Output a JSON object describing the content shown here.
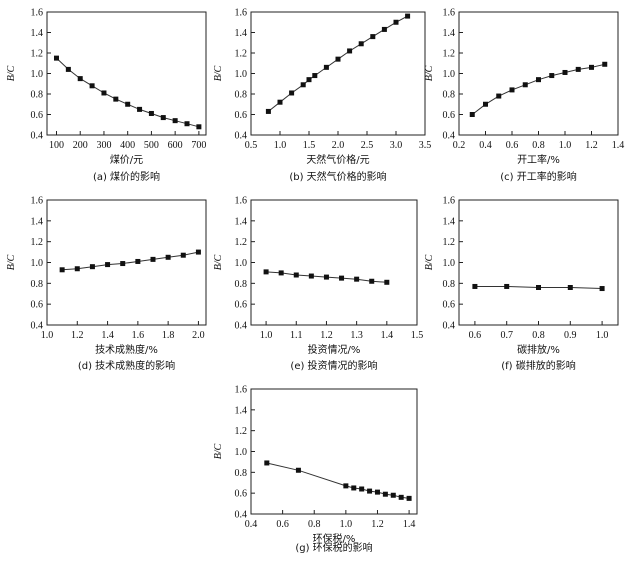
{
  "chart_data": [
    {
      "type": "line",
      "xlabel": "煤价/元",
      "ylabel": "B/C",
      "caption": "(a) 煤价的影响",
      "xlim": [
        60,
        730
      ],
      "ylim": [
        0.4,
        1.6
      ],
      "xticks": [
        100,
        200,
        300,
        400,
        500,
        600,
        700
      ],
      "yticks": [
        0.4,
        0.6,
        0.8,
        1.0,
        1.2,
        1.4,
        1.6
      ],
      "x": [
        100,
        150,
        200,
        250,
        300,
        350,
        400,
        450,
        500,
        550,
        600,
        650,
        700
      ],
      "y": [
        1.15,
        1.04,
        0.95,
        0.88,
        0.81,
        0.75,
        0.7,
        0.65,
        0.61,
        0.57,
        0.54,
        0.51,
        0.48
      ]
    },
    {
      "type": "line",
      "xlabel": "天然气价格/元",
      "ylabel": "B/C",
      "caption": "(b) 天然气价格的影响",
      "xlim": [
        0.5,
        3.5
      ],
      "ylim": [
        0.4,
        1.6
      ],
      "xticks": [
        0.5,
        1.0,
        1.5,
        2.0,
        2.5,
        3.0,
        3.5
      ],
      "yticks": [
        0.4,
        0.6,
        0.8,
        1.0,
        1.2,
        1.4,
        1.6
      ],
      "x": [
        0.8,
        1.0,
        1.2,
        1.4,
        1.5,
        1.6,
        1.8,
        2.0,
        2.2,
        2.4,
        2.6,
        2.8,
        3.0,
        3.2
      ],
      "y": [
        0.63,
        0.72,
        0.81,
        0.89,
        0.94,
        0.98,
        1.06,
        1.14,
        1.22,
        1.29,
        1.36,
        1.43,
        1.5,
        1.56
      ]
    },
    {
      "type": "line",
      "xlabel": "开工率/%",
      "ylabel": "B/C",
      "caption": "(c) 开工率的影响",
      "xlim": [
        0.2,
        1.4
      ],
      "ylim": [
        0.4,
        1.6
      ],
      "xticks": [
        0.2,
        0.4,
        0.6,
        0.8,
        1.0,
        1.2,
        1.4
      ],
      "yticks": [
        0.4,
        0.6,
        0.8,
        1.0,
        1.2,
        1.4,
        1.6
      ],
      "x": [
        0.3,
        0.4,
        0.5,
        0.6,
        0.7,
        0.8,
        0.9,
        1.0,
        1.1,
        1.2,
        1.3
      ],
      "y": [
        0.6,
        0.7,
        0.78,
        0.84,
        0.89,
        0.94,
        0.98,
        1.01,
        1.04,
        1.06,
        1.09
      ]
    },
    {
      "type": "line",
      "xlabel": "技术成熟度/%",
      "ylabel": "B/C",
      "caption": "(d) 技术成熟度的影响",
      "xlim": [
        1.0,
        2.05
      ],
      "ylim": [
        0.4,
        1.6
      ],
      "xticks": [
        1.0,
        1.2,
        1.4,
        1.6,
        1.8,
        2.0
      ],
      "yticks": [
        0.4,
        0.6,
        0.8,
        1.0,
        1.2,
        1.4,
        1.6
      ],
      "x": [
        1.1,
        1.2,
        1.3,
        1.4,
        1.5,
        1.6,
        1.7,
        1.8,
        1.9,
        2.0
      ],
      "y": [
        0.93,
        0.94,
        0.96,
        0.98,
        0.99,
        1.01,
        1.03,
        1.05,
        1.07,
        1.1
      ]
    },
    {
      "type": "line",
      "xlabel": "投资情况/%",
      "ylabel": "B/C",
      "caption": "(e) 投资情况的影响",
      "xlim": [
        0.95,
        1.5
      ],
      "ylim": [
        0.4,
        1.6
      ],
      "xticks": [
        1.0,
        1.1,
        1.2,
        1.3,
        1.4,
        1.5
      ],
      "yticks": [
        0.4,
        0.6,
        0.8,
        1.0,
        1.2,
        1.4,
        1.6
      ],
      "x": [
        1.0,
        1.05,
        1.1,
        1.15,
        1.2,
        1.25,
        1.3,
        1.35,
        1.4
      ],
      "y": [
        0.91,
        0.9,
        0.88,
        0.87,
        0.86,
        0.85,
        0.84,
        0.82,
        0.81
      ]
    },
    {
      "type": "line",
      "xlabel": "碳排放/%",
      "ylabel": "B/C",
      "caption": "(f) 碳排放的影响",
      "xlim": [
        0.55,
        1.05
      ],
      "ylim": [
        0.4,
        1.6
      ],
      "xticks": [
        0.6,
        0.7,
        0.8,
        0.9,
        1.0
      ],
      "yticks": [
        0.4,
        0.6,
        0.8,
        1.0,
        1.2,
        1.4,
        1.6
      ],
      "x": [
        0.6,
        0.7,
        0.8,
        0.9,
        1.0
      ],
      "y": [
        0.77,
        0.77,
        0.76,
        0.76,
        0.75
      ]
    },
    {
      "type": "line",
      "xlabel": "环保税/%",
      "ylabel": "B/C",
      "caption": "(g) 环保税的影响",
      "xlim": [
        0.4,
        1.45
      ],
      "ylim": [
        0.4,
        1.6
      ],
      "xticks": [
        0.4,
        0.6,
        0.8,
        1.0,
        1.2,
        1.4
      ],
      "yticks": [
        0.4,
        0.6,
        0.8,
        1.0,
        1.2,
        1.4,
        1.6
      ],
      "x": [
        0.5,
        0.7,
        1.0,
        1.05,
        1.1,
        1.15,
        1.2,
        1.25,
        1.3,
        1.35,
        1.4
      ],
      "y": [
        0.89,
        0.82,
        0.67,
        0.65,
        0.64,
        0.62,
        0.61,
        0.59,
        0.58,
        0.56,
        0.55
      ]
    }
  ]
}
